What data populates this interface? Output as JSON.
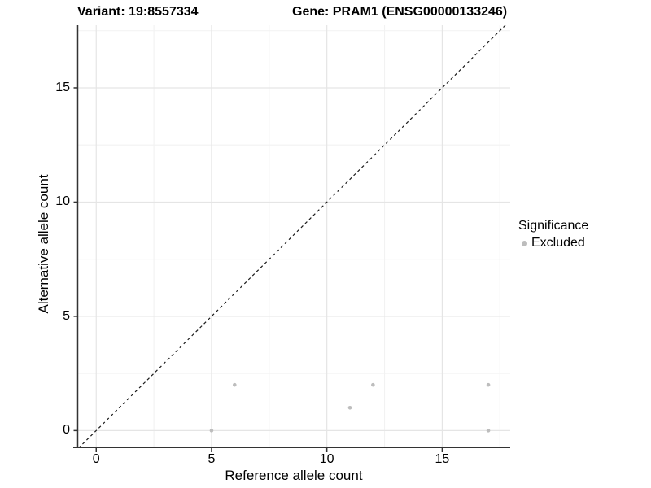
{
  "titles": {
    "variant": "Variant: 19:8557334",
    "gene": "Gene: PRAM1 (ENSG00000133246)"
  },
  "chart_data": {
    "type": "scatter",
    "xlabel": "Reference allele count",
    "ylabel": "Alternative allele count",
    "xlim": [
      -0.82,
      17.95
    ],
    "ylim": [
      -0.77,
      17.74
    ],
    "x_ticks": [
      0,
      5,
      10,
      15
    ],
    "y_ticks": [
      0,
      5,
      10,
      15
    ],
    "x_minor_ticks": [
      2.5,
      7.5,
      12.5,
      17.5
    ],
    "y_minor_ticks": [
      2.5,
      7.5,
      12.5,
      17.5
    ],
    "grid": true,
    "identity_line": {
      "slope": 1,
      "intercept": 0,
      "style": "dashed",
      "color": "#1a1a1a"
    },
    "series": [
      {
        "name": "Excluded",
        "color": "#bdbdbd",
        "points": [
          [
            5,
            0
          ],
          [
            6,
            2
          ],
          [
            11,
            1
          ],
          [
            12,
            2
          ],
          [
            17,
            0
          ],
          [
            17,
            2
          ]
        ]
      }
    ],
    "legend": {
      "title": "Significance",
      "position": "right",
      "entries": [
        {
          "label": "Excluded",
          "color": "#bdbdbd",
          "icon": "point-icon"
        }
      ]
    }
  },
  "colors": {
    "background": "#ffffff",
    "grid_major": "#e5e5e5",
    "grid_minor": "#f2f2f2",
    "axis": "#333333",
    "text": "#000000",
    "point": "#bdbdbd"
  }
}
